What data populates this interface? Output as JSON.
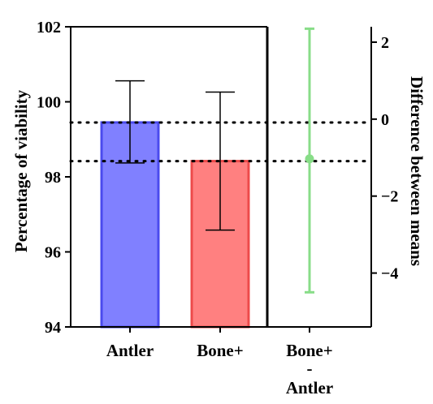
{
  "chart_data": {
    "type": "bar",
    "ylabel": "Percentage of viability",
    "ylabel_right": "Difference between means",
    "ylim": [
      94,
      102
    ],
    "yticks": [
      94,
      96,
      98,
      100,
      102
    ],
    "ylim_right": [
      -5.4,
      2.4
    ],
    "yticks_right": [
      -4,
      -2,
      0,
      2
    ],
    "categories": [
      "Antler",
      "Bone+"
    ],
    "values": [
      99.45,
      98.42
    ],
    "error_low": [
      98.37,
      96.58
    ],
    "error_high": [
      100.56,
      100.26
    ],
    "colors": {
      "bar_fills": [
        "#8080ff",
        "#ff8080"
      ],
      "bar_edges": [
        "#4a4aee",
        "#ee4a4a"
      ],
      "difference": "#88dd88"
    },
    "difference": {
      "label_lines": [
        "Bone+",
        "-",
        "Antler"
      ],
      "value": -1.03,
      "ci_low": -4.5,
      "ci_high": 2.35
    },
    "reference_lines": [
      99.45,
      98.42
    ],
    "grid": false
  }
}
